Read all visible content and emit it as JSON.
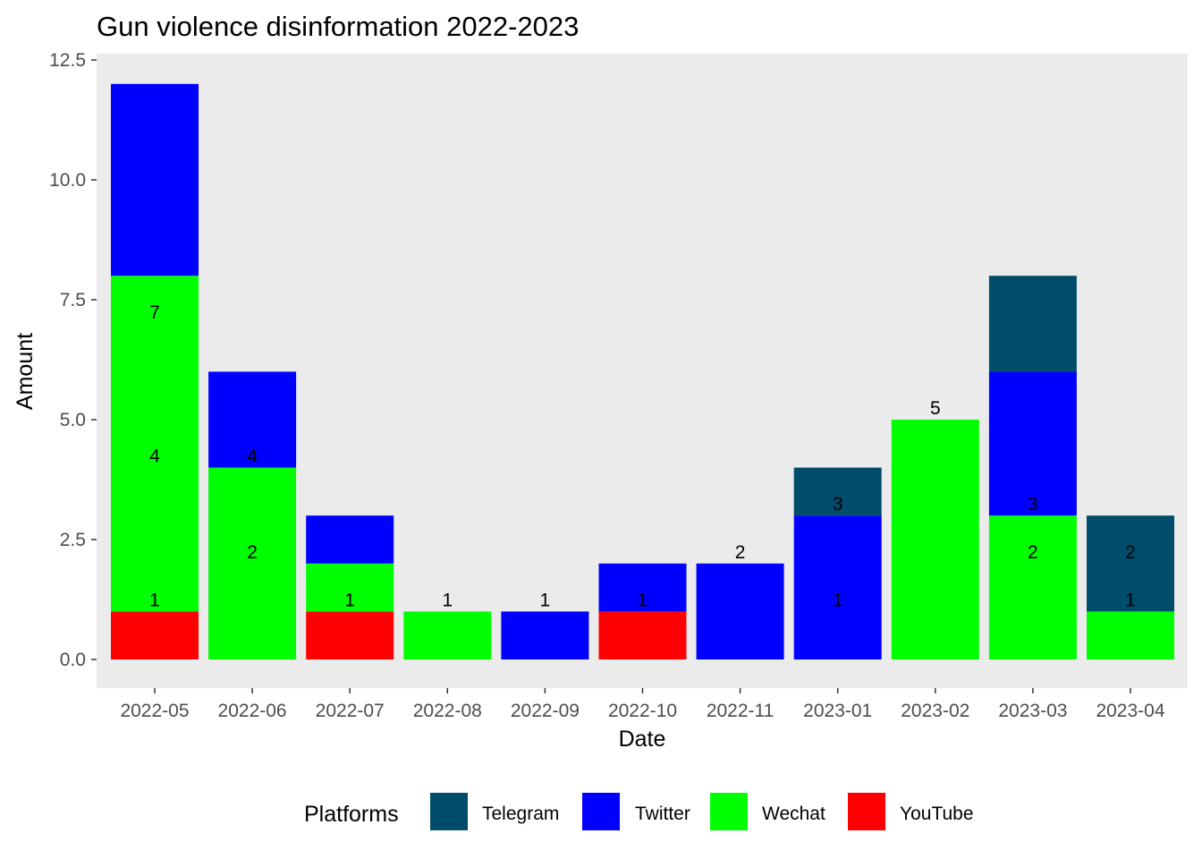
{
  "chart_data": {
    "type": "bar",
    "stacked": true,
    "title": "Gun violence disinformation 2022-2023",
    "xlabel": "Date",
    "ylabel": "Amount",
    "ylim": [
      0,
      12.5
    ],
    "yticks": [
      "0.0",
      "2.5",
      "5.0",
      "7.5",
      "10.0",
      "12.5"
    ],
    "grid": false,
    "panel_background": "#ebebeb",
    "categories": [
      "2022-05",
      "2022-06",
      "2022-07",
      "2022-08",
      "2022-09",
      "2022-10",
      "2022-11",
      "2023-01",
      "2023-02",
      "2023-03",
      "2023-04"
    ],
    "stack_order": [
      "YouTube",
      "Wechat",
      "Twitter",
      "Telegram"
    ],
    "series": [
      {
        "name": "Telegram",
        "color": "#004d6b",
        "values": [
          0,
          0,
          0,
          0,
          0,
          0,
          0,
          1,
          0,
          2,
          2
        ]
      },
      {
        "name": "Twitter",
        "color": "#0000ff",
        "values": [
          4,
          2,
          1,
          0,
          1,
          1,
          2,
          3,
          0,
          3,
          0
        ]
      },
      {
        "name": "Wechat",
        "color": "#00ff00",
        "values": [
          7,
          4,
          1,
          1,
          0,
          0,
          0,
          0,
          5,
          3,
          1
        ]
      },
      {
        "name": "YouTube",
        "color": "#ff0000",
        "values": [
          1,
          0,
          1,
          0,
          0,
          1,
          0,
          0,
          0,
          0,
          0
        ]
      }
    ],
    "data_labels": [
      {
        "category": "2022-05",
        "y": 7,
        "text": "7"
      },
      {
        "category": "2022-05",
        "y": 4,
        "text": "4"
      },
      {
        "category": "2022-05",
        "y": 1,
        "text": "1"
      },
      {
        "category": "2022-06",
        "y": 4,
        "text": "4"
      },
      {
        "category": "2022-06",
        "y": 2,
        "text": "2"
      },
      {
        "category": "2022-07",
        "y": 1,
        "text": "1"
      },
      {
        "category": "2022-07",
        "y": 1,
        "text": "1"
      },
      {
        "category": "2022-08",
        "y": 1,
        "text": "1"
      },
      {
        "category": "2022-09",
        "y": 1,
        "text": "1"
      },
      {
        "category": "2022-10",
        "y": 1,
        "text": "1"
      },
      {
        "category": "2022-11",
        "y": 2,
        "text": "2"
      },
      {
        "category": "2023-01",
        "y": 3,
        "text": "3"
      },
      {
        "category": "2023-01",
        "y": 1,
        "text": "1"
      },
      {
        "category": "2023-02",
        "y": 5,
        "text": "5"
      },
      {
        "category": "2023-03",
        "y": 3,
        "text": "3"
      },
      {
        "category": "2023-03",
        "y": 2,
        "text": "2"
      },
      {
        "category": "2023-04",
        "y": 2,
        "text": "2"
      },
      {
        "category": "2023-04",
        "y": 1,
        "text": "1"
      }
    ],
    "legend": {
      "title": "Platforms",
      "placement": "bottom",
      "items": [
        {
          "label": "Telegram",
          "color": "#004d6b"
        },
        {
          "label": "Twitter",
          "color": "#0000ff"
        },
        {
          "label": "Wechat",
          "color": "#00ff00"
        },
        {
          "label": "YouTube",
          "color": "#ff0000"
        }
      ]
    }
  }
}
